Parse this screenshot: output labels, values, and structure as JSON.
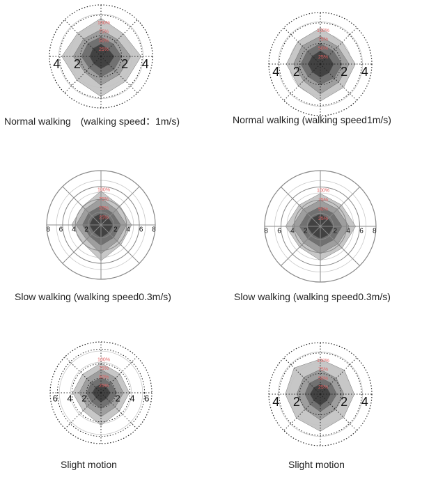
{
  "colors": {
    "pct_label": "#e06060",
    "dotted_frame": "#222222",
    "solid_frame": "#888888",
    "inner_ring": "#c8c8c8",
    "layers": [
      "#c2c2c2",
      "#9a9a9a",
      "#6e6e6e",
      "#3e3e3e"
    ]
  },
  "chart_data": [
    {
      "type": "radar",
      "caption": "Normal walking　(walking speed：1m/s)",
      "frame": "dotted",
      "axis_max": 5,
      "ring_values": [
        2,
        4
      ],
      "tick_labels": [
        "4",
        "2",
        "2",
        "4"
      ],
      "pct_labels": [
        "100%",
        "75%",
        "50%",
        "25%"
      ],
      "layers": [
        [
          3.7,
          3.1,
          3.9,
          3.4,
          3.9,
          3.3,
          3.8,
          3.2
        ],
        [
          2.6,
          2.3,
          2.9,
          2.5,
          2.8,
          2.2,
          2.7,
          2.4
        ],
        [
          1.9,
          1.7,
          2.0,
          1.8,
          2.0,
          1.6,
          1.9,
          1.8
        ],
        [
          1.2,
          1.0,
          1.3,
          1.1,
          1.2,
          1.0,
          1.1,
          1.1
        ]
      ]
    },
    {
      "type": "radar",
      "caption": "Normal walking (walking speed1m/s)",
      "frame": "dotted",
      "axis_max": 5,
      "ring_values": [
        2,
        4
      ],
      "tick_labels": [
        "4",
        "2",
        "2",
        "4"
      ],
      "pct_labels": [
        "100%",
        "75%",
        "50%",
        "25%"
      ],
      "layers": [
        [
          3.5,
          3.0,
          3.4,
          3.2,
          3.6,
          3.0,
          3.3,
          3.1
        ],
        [
          2.7,
          2.4,
          2.8,
          2.5,
          2.9,
          2.3,
          2.6,
          2.5
        ],
        [
          2.0,
          1.8,
          2.1,
          1.9,
          2.0,
          1.7,
          1.9,
          1.8
        ],
        [
          1.3,
          1.1,
          1.3,
          1.2,
          1.3,
          1.1,
          1.2,
          1.1
        ]
      ]
    },
    {
      "type": "radar",
      "caption": "Slow walking (walking speed0.3m/s)",
      "frame": "solid",
      "axis_max": 8.5,
      "ring_values": [
        2,
        4,
        6
      ],
      "tick_labels": [
        "8",
        "6",
        "4",
        "2",
        "2",
        "4",
        "6",
        "8"
      ],
      "pct_labels": [
        "100%",
        "75%",
        "50%",
        "25%"
      ],
      "layers": [
        [
          5.3,
          4.2,
          4.8,
          4.4,
          5.6,
          4.0,
          4.6,
          4.1
        ],
        [
          4.2,
          3.4,
          4.0,
          3.6,
          4.5,
          3.2,
          3.9,
          3.5
        ],
        [
          3.0,
          2.6,
          3.1,
          2.8,
          3.2,
          2.5,
          2.9,
          2.7
        ],
        [
          1.8,
          1.6,
          1.9,
          1.7,
          2.0,
          1.6,
          1.8,
          1.7
        ]
      ]
    },
    {
      "type": "radar",
      "caption": "Slow walking (walking speed0.3m/s)",
      "frame": "solid",
      "axis_max": 8.5,
      "ring_values": [
        2,
        4,
        6
      ],
      "tick_labels": [
        "8",
        "6",
        "4",
        "2",
        "2",
        "4",
        "6",
        "8"
      ],
      "pct_labels": [
        "100%",
        "75%",
        "50%",
        "25%"
      ],
      "layers": [
        [
          5.0,
          4.6,
          5.4,
          4.7,
          5.2,
          4.5,
          5.3,
          4.6
        ],
        [
          4.0,
          3.7,
          4.4,
          3.8,
          4.2,
          3.6,
          4.3,
          3.7
        ],
        [
          3.0,
          2.8,
          3.3,
          2.9,
          3.1,
          2.7,
          3.2,
          2.8
        ],
        [
          1.9,
          1.7,
          2.0,
          1.8,
          1.9,
          1.7,
          2.0,
          1.8
        ]
      ]
    },
    {
      "type": "radar",
      "caption": "Slight motion",
      "frame": "dotted",
      "axis_max": 7,
      "ring_values": [
        2,
        4,
        6
      ],
      "tick_labels": [
        "6",
        "4",
        "2",
        "2",
        "4",
        "6"
      ],
      "pct_labels": [
        "100%",
        "75%",
        "50%",
        "25%"
      ],
      "layers": [
        [
          4.1,
          3.7,
          3.9,
          3.6,
          4.5,
          3.5,
          3.9,
          3.6
        ],
        [
          3.2,
          2.9,
          3.1,
          2.8,
          3.3,
          2.7,
          3.0,
          2.8
        ],
        [
          2.1,
          1.9,
          2.2,
          1.9,
          2.2,
          1.8,
          2.0,
          1.9
        ],
        [
          1.2,
          1.1,
          1.3,
          1.1,
          1.3,
          1.0,
          1.2,
          1.1
        ]
      ]
    },
    {
      "type": "radar",
      "caption": "Slight motion",
      "frame": "dotted",
      "axis_max": 5,
      "ring_values": [
        2,
        4
      ],
      "tick_labels": [
        "4",
        "2",
        "2",
        "4"
      ],
      "pct_labels": [
        "100%",
        "75%",
        "50%",
        "25%"
      ],
      "layers": [
        [
          3.4,
          3.3,
          3.3,
          3.2,
          3.6,
          3.3,
          3.4,
          3.6
        ],
        [
          2.4,
          2.2,
          2.3,
          2.1,
          2.5,
          2.1,
          2.3,
          2.3
        ],
        [
          1.6,
          1.5,
          1.6,
          1.4,
          1.7,
          1.4,
          1.5,
          1.5
        ],
        [
          1.0,
          0.9,
          1.0,
          0.9,
          1.1,
          0.9,
          1.0,
          0.9
        ]
      ]
    }
  ]
}
